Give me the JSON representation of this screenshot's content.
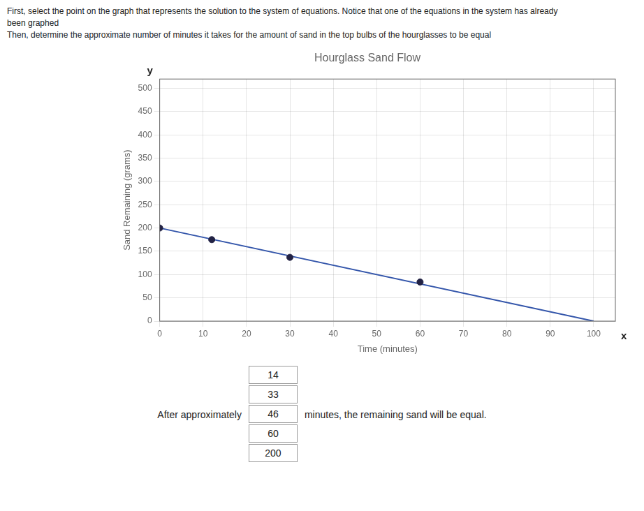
{
  "chart_data": {
    "type": "line",
    "title": "Hourglass Sand Flow",
    "subtitle": [
      "First, select the point on the graph that represents the solution to the system of equations. Notice that one of the equations in the system has already",
      "been graphed",
      "Then, determine the approximate number of minutes it takes for the amount of sand in the top bulbs of the hourglasses to be equal"
    ],
    "x_label": "Time (minutes)",
    "y_label": "Sand Remaining (grams)",
    "series": [
      {
        "type": "line",
        "color": "#3355aa",
        "x": [
          0,
          100
        ],
        "values": [
          200,
          0
        ]
      },
      {
        "type": "scatter",
        "color": "#222244",
        "x": [
          0,
          12,
          30,
          60
        ],
        "values": [
          200,
          175,
          137,
          84
        ]
      }
    ],
    "xlim": [
      0,
      105
    ],
    "ylim": [
      0,
      520
    ],
    "xticks": [
      0,
      10,
      20,
      30,
      40,
      50,
      60,
      70,
      80,
      90,
      100
    ],
    "yticks": [
      0,
      50,
      100,
      150,
      200,
      250,
      300,
      350,
      400,
      450,
      500
    ],
    "grid": true,
    "annotations": [
      {
        "text": "y"
      },
      {
        "text": "x"
      },
      {
        "text_before": "After approximately",
        "choices": [
          "14",
          "33",
          "46",
          "60",
          "200"
        ],
        "text_after": "minutes, the remaining sand will be equal."
      }
    ]
  }
}
